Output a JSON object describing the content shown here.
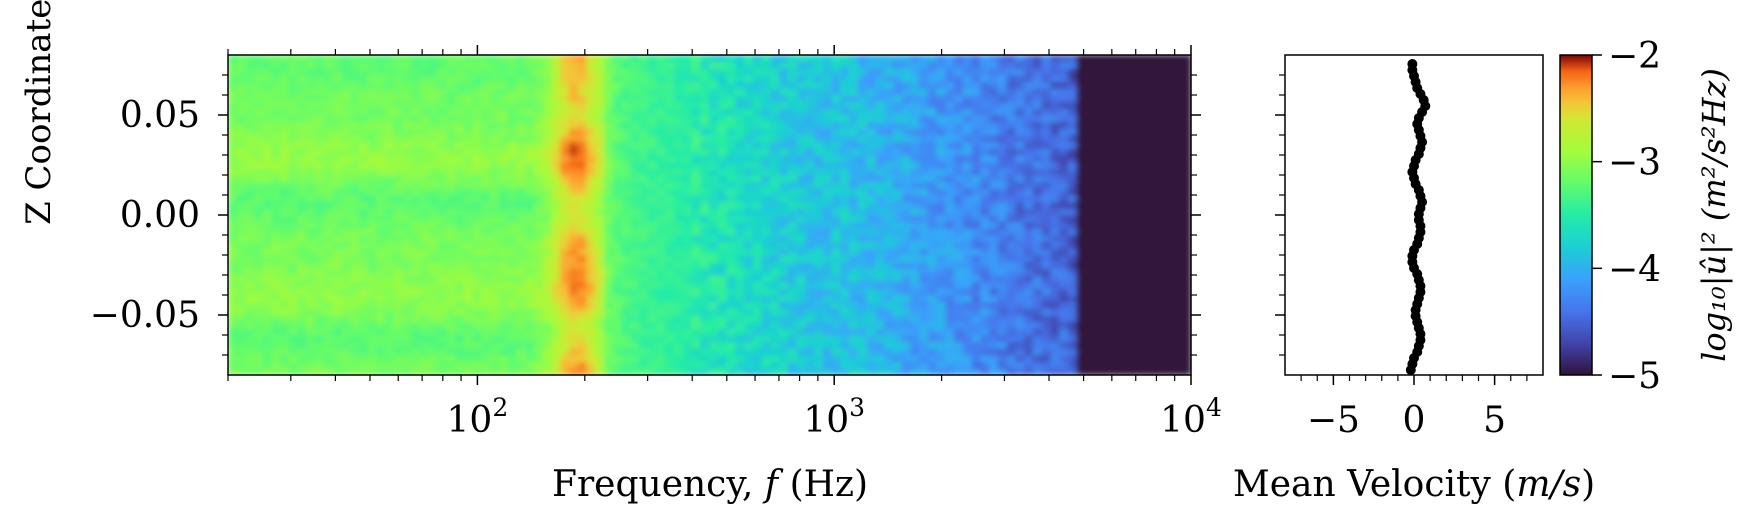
{
  "chart_data": [
    {
      "type": "heatmap",
      "xlabel_prefix": "Frequency, ",
      "xlabel_var": "f",
      "xlabel_unit": " (Hz)",
      "ylabel": "Z Coordinate (m)",
      "xscale": "log",
      "xlim": [
        20,
        10000
      ],
      "ylim": [
        -0.08,
        0.08
      ],
      "x_ticks": [
        {
          "base": "10",
          "exp": "2",
          "value": 100
        },
        {
          "base": "10",
          "exp": "3",
          "value": 1000
        },
        {
          "base": "10",
          "exp": "4",
          "value": 10000
        }
      ],
      "y_ticks": [
        {
          "label": "0.05",
          "value": 0.05
        },
        {
          "label": "0.00",
          "value": 0.0
        },
        {
          "label": "−0.05",
          "value": -0.05
        }
      ],
      "colormap": "turbo",
      "clim": [
        -5,
        -2
      ],
      "colorbar_ticks": [
        {
          "label": "−2",
          "value": -2
        },
        {
          "label": "−3",
          "value": -3
        },
        {
          "label": "−4",
          "value": -4
        },
        {
          "label": "−5",
          "value": -5
        }
      ],
      "colorbar_label": "log₁₀|û|² (m²/s²Hz)",
      "description_values": {
        "level_low_freq": -3.1,
        "peak_freq_hz": 190,
        "peak_level": -2.6,
        "cutoff_freq_hz": 4800,
        "level_above_cutoff": -5.0
      }
    },
    {
      "type": "scatter",
      "xlabel_prefix": "Mean Velocity (",
      "xlabel_var": "m/s",
      "xlabel_suffix": ")",
      "xlim": [
        -8,
        8
      ],
      "ylim": [
        -0.08,
        0.08
      ],
      "x_ticks": [
        {
          "label": "−5",
          "value": -5
        },
        {
          "label": "0",
          "value": 0
        },
        {
          "label": "5",
          "value": 5
        }
      ],
      "series": [
        {
          "marker_color": "#000000",
          "z": [
            -0.0775,
            -0.0745,
            -0.0715,
            -0.0685,
            -0.0655,
            -0.0625,
            -0.0595,
            -0.0565,
            -0.0535,
            -0.0505,
            -0.0475,
            -0.0445,
            -0.0415,
            -0.0385,
            -0.0355,
            -0.0325,
            -0.0295,
            -0.0265,
            -0.0235,
            -0.0205,
            -0.0175,
            -0.0145,
            -0.0115,
            -0.0085,
            -0.0055,
            -0.0025,
            0.0005,
            0.0035,
            0.0065,
            0.0095,
            0.0125,
            0.0155,
            0.0185,
            0.0215,
            0.0245,
            0.0275,
            0.0305,
            0.0335,
            0.0365,
            0.0395,
            0.0425,
            0.0455,
            0.0485,
            0.0515,
            0.0545,
            0.0575,
            0.0605,
            0.0635,
            0.0665,
            0.0695,
            0.0725,
            0.0755
          ],
          "u": [
            -0.2,
            -0.1,
            0.0,
            0.2,
            0.3,
            0.4,
            0.4,
            0.3,
            0.2,
            0.1,
            0.1,
            0.2,
            0.3,
            0.4,
            0.4,
            0.3,
            0.2,
            0.0,
            -0.1,
            -0.1,
            0.0,
            0.2,
            0.3,
            0.4,
            0.4,
            0.3,
            0.3,
            0.4,
            0.5,
            0.4,
            0.3,
            0.1,
            0.0,
            -0.1,
            0.0,
            0.1,
            0.3,
            0.4,
            0.5,
            0.4,
            0.3,
            0.2,
            0.3,
            0.5,
            0.7,
            0.6,
            0.4,
            0.2,
            0.1,
            0.0,
            -0.1,
            -0.1
          ]
        }
      ]
    }
  ]
}
